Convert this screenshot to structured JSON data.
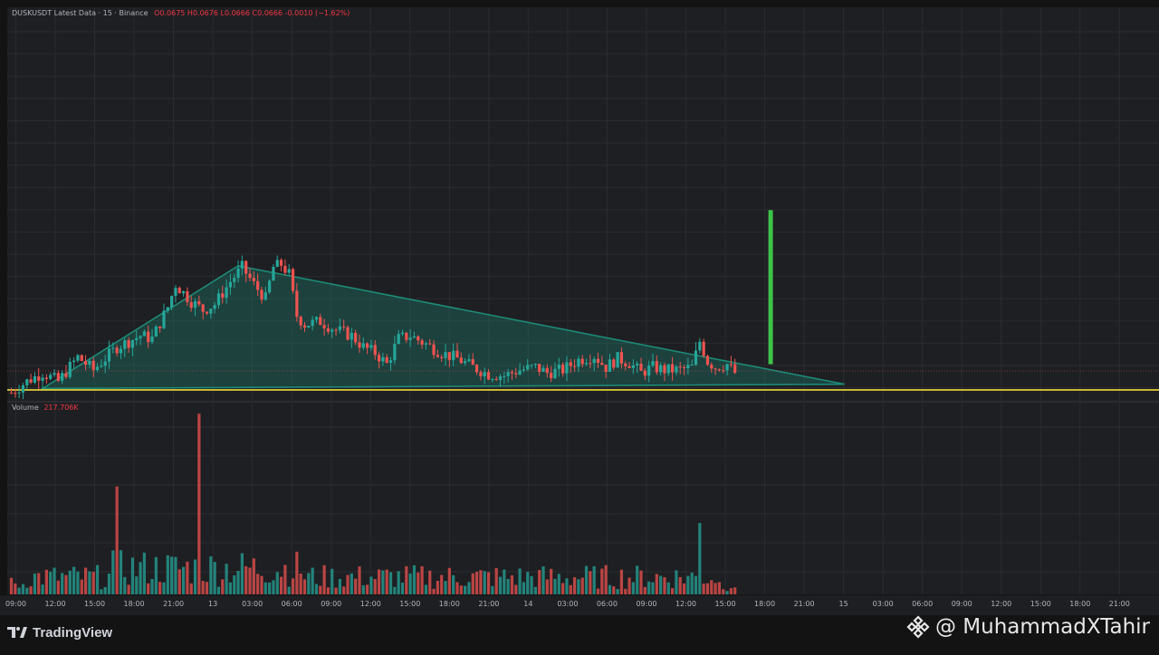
{
  "header": {
    "symbol_line": "DUSKUSDT Latest Data · 15 · Binance",
    "ohlc": [
      "O0.0675",
      "H0.0676",
      "L0.0666",
      "C0.0666",
      "-0.0010 (−1.62%)"
    ]
  },
  "volume": {
    "label": "Volume",
    "value": "217.706K"
  },
  "branding": {
    "logo_text": "TradingView",
    "watermark": "@ MuhammadXTahir"
  },
  "colors": {
    "background": "#1e1f22",
    "up": "#26a69a",
    "down": "#ef5350",
    "triangle": "#1d8a77",
    "support": "#ffeb3b",
    "target": "#3ec24a"
  },
  "chart_data": {
    "type": "candlestick",
    "x_ticks": [
      "09:00",
      "12:00",
      "15:00",
      "18:00",
      "21:00",
      "13",
      "03:00",
      "06:00",
      "09:00",
      "12:00",
      "15:00",
      "18:00",
      "21:00",
      "14",
      "03:00",
      "06:00",
      "09:00",
      "12:00",
      "15:00",
      "18:00",
      "21:00",
      "15",
      "03:00",
      "06:00",
      "09:00",
      "12:00",
      "15:00",
      "18:00",
      "21:00"
    ],
    "y_range": [
      0.056,
      0.082
    ],
    "close_path": [
      [
        0,
        0.0652
      ],
      [
        4,
        0.066
      ],
      [
        8,
        0.0666
      ],
      [
        12,
        0.066
      ],
      [
        17,
        0.0677
      ],
      [
        21,
        0.0668
      ],
      [
        27,
        0.0684
      ],
      [
        33,
        0.0692
      ],
      [
        36,
        0.069
      ],
      [
        40,
        0.0712
      ],
      [
        42,
        0.0728
      ],
      [
        44,
        0.0722
      ],
      [
        46,
        0.0716
      ],
      [
        49,
        0.071
      ],
      [
        52,
        0.0714
      ],
      [
        56,
        0.073
      ],
      [
        59,
        0.074
      ],
      [
        62,
        0.0728
      ],
      [
        65,
        0.0718
      ],
      [
        67,
        0.074
      ],
      [
        69,
        0.0742
      ],
      [
        71,
        0.0735
      ],
      [
        73,
        0.0706
      ],
      [
        75,
        0.07
      ],
      [
        79,
        0.0702
      ],
      [
        83,
        0.0696
      ],
      [
        87,
        0.0692
      ],
      [
        90,
        0.0684
      ],
      [
        93,
        0.068
      ],
      [
        96,
        0.0672
      ],
      [
        99,
        0.069
      ],
      [
        102,
        0.0692
      ],
      [
        106,
        0.0686
      ],
      [
        110,
        0.068
      ],
      [
        114,
        0.0676
      ],
      [
        118,
        0.067
      ],
      [
        122,
        0.0665
      ],
      [
        126,
        0.0664
      ],
      [
        130,
        0.0668
      ],
      [
        134,
        0.067
      ],
      [
        137,
        0.0666
      ],
      [
        141,
        0.0668
      ],
      [
        145,
        0.0675
      ],
      [
        149,
        0.0678
      ],
      [
        152,
        0.067
      ],
      [
        155,
        0.0676
      ],
      [
        158,
        0.0673
      ],
      [
        161,
        0.0666
      ],
      [
        164,
        0.067
      ],
      [
        167,
        0.0668
      ],
      [
        171,
        0.0668
      ],
      [
        174,
        0.067
      ],
      [
        176,
        0.0688
      ],
      [
        178,
        0.0674
      ],
      [
        180,
        0.067
      ],
      [
        183,
        0.0672
      ],
      [
        185,
        0.0666
      ]
    ],
    "volume_spikes": [
      {
        "bar": 48,
        "value": 217.706,
        "dir": "down"
      },
      {
        "bar": 27,
        "value": 130,
        "dir": "down"
      },
      {
        "bar": 176,
        "value": 86,
        "dir": "up"
      }
    ],
    "volume_ylim": [
      0,
      218
    ],
    "triangle": {
      "apex": [
        58,
        0.0741
      ],
      "left": [
        8,
        0.0655
      ],
      "right": [
        213,
        0.0658
      ]
    },
    "support_level": 0.0654,
    "current_price": 0.0666,
    "target_bar": {
      "x": 194,
      "from": 0.0672,
      "to": 0.078
    }
  }
}
